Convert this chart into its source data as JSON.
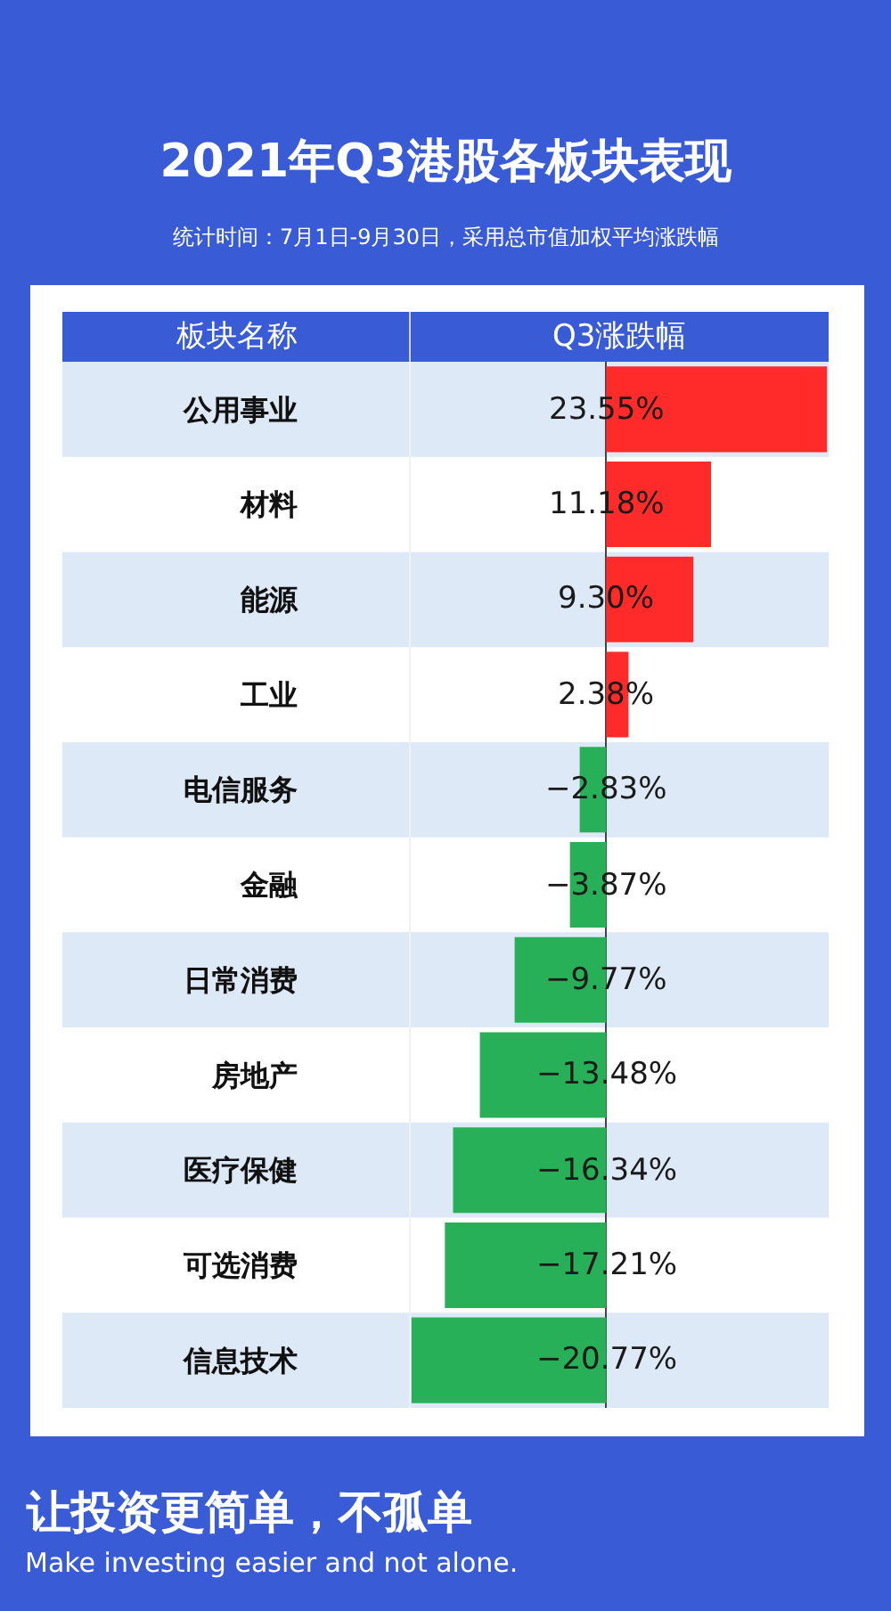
{
  "chart_data": {
    "type": "bar",
    "title": "2021年Q3港股各板块表现",
    "subtitle": "统计时间：7月1日-9月30日，采用总市值加权平均涨跌幅",
    "xlabel": "Q3涨跌幅",
    "ylabel": "板块名称",
    "orientation": "horizontal",
    "tick_labels": "y",
    "categories": [
      "公用事业",
      "材料",
      "能源",
      "工业",
      "电信服务",
      "金融",
      "日常消费",
      "房地产",
      "医疗保健",
      "可选消费",
      "信息技术"
    ],
    "values": [
      23.55,
      11.18,
      9.3,
      2.38,
      -2.83,
      -3.87,
      -9.77,
      -13.48,
      -16.34,
      -17.21,
      -20.77
    ],
    "colors": [
      "#ff2a2a",
      "#ff2a2a",
      "#ff2a2a",
      "#ff2a2a",
      "#27b057",
      "#27b057",
      "#27b057",
      "#27b057",
      "#27b057",
      "#27b057",
      "#27b057"
    ],
    "value_labels": [
      "23.55%",
      "11.18%",
      "9.30%",
      "2.38%",
      "−2.83%",
      "−3.87%",
      "−9.77%",
      "−13.48%",
      "−16.34%",
      "−17.21%",
      "−20.77%"
    ],
    "annotations": [
      "让投资更简单，不孤单",
      "Make investing easier and not alone."
    ]
  }
}
